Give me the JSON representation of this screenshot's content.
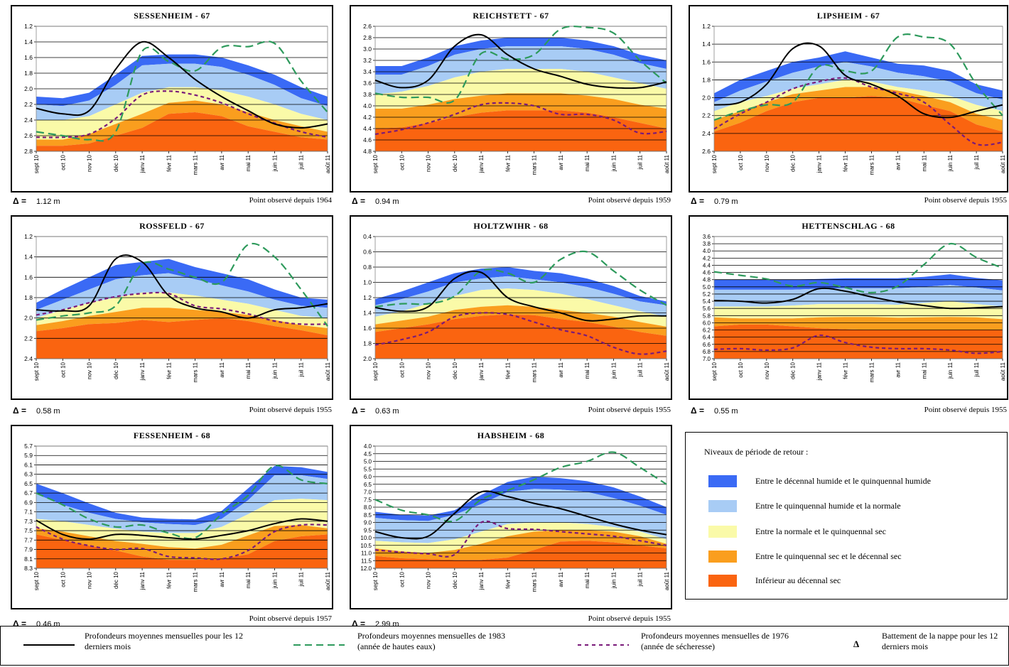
{
  "colors": {
    "band1": "#3a6af5",
    "band2": "#a8ccf5",
    "band3": "#fafaa8",
    "band4": "#fa9e1e",
    "band5": "#fa6410",
    "current": "#000000",
    "wet1983": "#2e9a5c",
    "dry1976": "#7a1a7a"
  },
  "months": [
    "sept 10",
    "oct 10",
    "nov 10",
    "déc 10",
    "janv 11",
    "févr 11",
    "mars 11",
    "avr 11",
    "mai 11",
    "juin 11",
    "juil 11",
    "août 11"
  ],
  "delta_symbol": "Δ =",
  "legend": {
    "title": "Niveaux de période de retour :",
    "items": [
      {
        "label": "Entre le décennal humide et le quinquennal humide",
        "color": "#3a6af5"
      },
      {
        "label": "Entre le quinquennal humide et la normale",
        "color": "#a8ccf5"
      },
      {
        "label": "Entre la normale et le quinquennal sec",
        "color": "#fafaa8"
      },
      {
        "label": "Entre le quinquennal sec et le décennal sec",
        "color": "#fa9e1e"
      },
      {
        "label": "Inférieur au décennal sec",
        "color": "#fa6410"
      }
    ]
  },
  "bottom_legend": {
    "current": "Profondeurs moyennes mensuelles pour les 12 derniers mois",
    "wet": "Profondeurs moyennes mensuelles de 1983 (année de hautes eaux)",
    "dry": "Profondeurs moyennes mensuelles de 1976 (année de sécheresse)",
    "delta_symbol": "Δ",
    "delta": "Battement de la nappe pour les 12 derniers mois"
  },
  "chart_data": [
    {
      "type": "area",
      "title": "SESSENHEIM - 67",
      "delta": "1.12 m",
      "observed": "Point observé depuis 1964",
      "y_inverted": true,
      "ylim": [
        1.2,
        2.8
      ],
      "yticks": [
        "1.2",
        "1.4",
        "1.6",
        "1.8",
        "2.0",
        "2.2",
        "2.4",
        "2.6",
        "2.8"
      ],
      "bands": [
        [
          2.1,
          2.12,
          2.05,
          1.82,
          1.58,
          1.56,
          1.56,
          1.6,
          1.7,
          1.82,
          1.98,
          2.1
        ],
        [
          2.2,
          2.22,
          2.15,
          1.95,
          1.7,
          1.68,
          1.68,
          1.72,
          1.82,
          1.95,
          2.12,
          2.22
        ],
        [
          2.4,
          2.4,
          2.35,
          2.2,
          2.05,
          1.98,
          1.98,
          2.02,
          2.1,
          2.2,
          2.32,
          2.4
        ],
        [
          2.65,
          2.65,
          2.58,
          2.45,
          2.32,
          2.18,
          2.15,
          2.2,
          2.3,
          2.4,
          2.48,
          2.55
        ],
        [
          2.73,
          2.73,
          2.7,
          2.6,
          2.5,
          2.32,
          2.3,
          2.35,
          2.48,
          2.55,
          2.62,
          2.65
        ]
      ],
      "current": [
        2.25,
        2.32,
        2.28,
        1.75,
        1.4,
        1.6,
        1.88,
        2.1,
        2.28,
        2.45,
        2.5,
        2.45
      ],
      "wet1983": [
        2.55,
        2.6,
        2.65,
        2.55,
        1.52,
        1.65,
        1.77,
        1.47,
        1.46,
        1.42,
        1.9,
        2.3
      ],
      "dry1976": [
        2.62,
        2.62,
        2.58,
        2.38,
        2.08,
        2.03,
        2.08,
        2.18,
        2.32,
        2.44,
        2.55,
        2.62
      ]
    },
    {
      "type": "area",
      "title": "REICHSTETT - 67",
      "delta": "0.94 m",
      "observed": "Point observé depuis 1959",
      "y_inverted": true,
      "ylim": [
        2.6,
        4.8
      ],
      "yticks": [
        "2.6",
        "2.8",
        "3.0",
        "3.2",
        "3.4",
        "3.6",
        "3.8",
        "4.0",
        "4.2",
        "4.4",
        "4.6",
        "4.8"
      ],
      "bands": [
        [
          3.3,
          3.3,
          3.15,
          2.95,
          2.85,
          2.8,
          2.8,
          2.8,
          2.85,
          2.95,
          3.1,
          3.2
        ],
        [
          3.45,
          3.45,
          3.3,
          3.1,
          3.0,
          2.95,
          2.95,
          2.95,
          3.0,
          3.1,
          3.25,
          3.35
        ],
        [
          3.8,
          3.75,
          3.65,
          3.5,
          3.4,
          3.35,
          3.35,
          3.35,
          3.4,
          3.5,
          3.6,
          3.7
        ],
        [
          4.05,
          4.05,
          3.98,
          3.88,
          3.82,
          3.78,
          3.78,
          3.78,
          3.82,
          3.88,
          3.98,
          4.05
        ],
        [
          4.4,
          4.38,
          4.3,
          4.2,
          4.12,
          4.08,
          4.08,
          4.08,
          4.12,
          4.2,
          4.3,
          4.4
        ]
      ],
      "current": [
        3.55,
        3.68,
        3.55,
        2.95,
        2.75,
        3.1,
        3.35,
        3.48,
        3.62,
        3.68,
        3.68,
        3.58
      ],
      "wet1983": [
        3.78,
        3.85,
        3.85,
        3.9,
        3.08,
        3.18,
        3.1,
        2.65,
        2.62,
        2.72,
        3.2,
        3.6
      ],
      "dry1976": [
        4.5,
        4.42,
        4.3,
        4.15,
        3.98,
        3.95,
        4.0,
        4.15,
        4.15,
        4.25,
        4.48,
        4.45
      ]
    },
    {
      "type": "area",
      "title": "LIPSHEIM - 67",
      "delta": "0.79 m",
      "observed": "Point observé depuis 1955",
      "y_inverted": true,
      "ylim": [
        1.2,
        2.6
      ],
      "yticks": [
        "1.2",
        "1.4",
        "1.6",
        "1.8",
        "2.0",
        "2.2",
        "2.4",
        "2.6"
      ],
      "bands": [
        [
          1.95,
          1.8,
          1.7,
          1.6,
          1.55,
          1.48,
          1.55,
          1.62,
          1.64,
          1.7,
          1.85,
          1.92
        ],
        [
          2.05,
          1.92,
          1.82,
          1.72,
          1.65,
          1.6,
          1.65,
          1.72,
          1.76,
          1.82,
          1.95,
          2.02
        ],
        [
          2.15,
          2.05,
          1.98,
          1.9,
          1.85,
          1.8,
          1.82,
          1.88,
          1.92,
          1.98,
          2.08,
          2.15
        ],
        [
          2.25,
          2.15,
          2.05,
          1.96,
          1.92,
          1.88,
          1.88,
          1.92,
          1.98,
          2.05,
          2.18,
          2.25
        ],
        [
          2.38,
          2.28,
          2.15,
          2.05,
          2.0,
          2.0,
          1.98,
          2.0,
          2.08,
          2.15,
          2.3,
          2.38
        ]
      ],
      "current": [
        2.08,
        2.05,
        1.85,
        1.45,
        1.42,
        1.75,
        1.85,
        1.98,
        2.18,
        2.22,
        2.15,
        2.08
      ],
      "wet1983": [
        2.25,
        2.15,
        2.08,
        2.05,
        1.65,
        1.7,
        1.7,
        1.32,
        1.32,
        1.4,
        1.85,
        2.2
      ],
      "dry1976": [
        2.35,
        2.18,
        2.05,
        1.9,
        1.82,
        1.78,
        1.88,
        1.95,
        2.05,
        2.3,
        2.52,
        2.5
      ]
    },
    {
      "type": "area",
      "title": "ROSSFELD - 67",
      "delta": "0.58 m",
      "observed": "Point observé depuis 1955",
      "y_inverted": true,
      "ylim": [
        1.2,
        2.4
      ],
      "yticks": [
        "1.2",
        "1.4",
        "1.6",
        "1.8",
        "2.0",
        "2.2",
        "2.4"
      ],
      "bands": [
        [
          1.85,
          1.72,
          1.6,
          1.48,
          1.45,
          1.42,
          1.5,
          1.56,
          1.62,
          1.72,
          1.8,
          1.82
        ],
        [
          1.92,
          1.82,
          1.72,
          1.62,
          1.58,
          1.56,
          1.62,
          1.68,
          1.74,
          1.82,
          1.88,
          1.9
        ],
        [
          2.0,
          1.92,
          1.85,
          1.8,
          1.75,
          1.75,
          1.78,
          1.82,
          1.86,
          1.92,
          1.98,
          2.0
        ],
        [
          2.07,
          2.03,
          1.98,
          1.94,
          1.9,
          1.9,
          1.92,
          1.94,
          1.97,
          2.02,
          2.07,
          2.1
        ],
        [
          2.13,
          2.1,
          2.06,
          2.05,
          2.02,
          2.04,
          2.02,
          2.0,
          2.03,
          2.08,
          2.12,
          2.17
        ]
      ],
      "current": [
        1.92,
        1.93,
        1.88,
        1.42,
        1.45,
        1.78,
        1.9,
        1.94,
        2.0,
        1.92,
        1.9,
        1.86
      ],
      "wet1983": [
        2.02,
        1.98,
        1.95,
        1.88,
        1.47,
        1.52,
        1.6,
        1.65,
        1.28,
        1.4,
        1.72,
        2.08
      ],
      "dry1976": [
        1.97,
        1.92,
        1.85,
        1.79,
        1.76,
        1.76,
        1.88,
        1.91,
        1.96,
        2.03,
        2.06,
        2.06
      ]
    },
    {
      "type": "area",
      "title": "HOLTZWIHR - 68",
      "delta": "0.63 m",
      "observed": "Point observé depuis 1955",
      "y_inverted": true,
      "ylim": [
        0.4,
        2.0
      ],
      "yticks": [
        "0.4",
        "0.6",
        "0.8",
        "1.0",
        "1.2",
        "1.4",
        "1.6",
        "1.8",
        "2.0"
      ],
      "bands": [
        [
          1.22,
          1.12,
          1.0,
          0.88,
          0.82,
          0.8,
          0.85,
          0.88,
          0.95,
          1.05,
          1.18,
          1.25
        ],
        [
          1.3,
          1.22,
          1.12,
          1.0,
          0.95,
          0.92,
          0.96,
          1.0,
          1.06,
          1.15,
          1.25,
          1.3
        ],
        [
          1.45,
          1.38,
          1.28,
          1.18,
          1.1,
          1.08,
          1.1,
          1.15,
          1.22,
          1.3,
          1.38,
          1.45
        ],
        [
          1.55,
          1.5,
          1.45,
          1.36,
          1.32,
          1.3,
          1.32,
          1.36,
          1.4,
          1.45,
          1.52,
          1.58
        ],
        [
          1.65,
          1.6,
          1.55,
          1.48,
          1.44,
          1.42,
          1.43,
          1.48,
          1.52,
          1.58,
          1.65,
          1.7
        ]
      ],
      "current": [
        1.33,
        1.38,
        1.32,
        0.95,
        0.87,
        1.2,
        1.32,
        1.4,
        1.5,
        1.48,
        1.44,
        1.44
      ],
      "wet1983": [
        1.32,
        1.28,
        1.28,
        1.18,
        0.85,
        0.88,
        1.0,
        0.7,
        0.6,
        0.85,
        1.1,
        1.3
      ],
      "dry1976": [
        1.82,
        1.75,
        1.65,
        1.45,
        1.4,
        1.42,
        1.52,
        1.62,
        1.7,
        1.85,
        1.94,
        1.9
      ]
    },
    {
      "type": "area",
      "title": "HETTENSCHLAG - 68",
      "delta": "0.55 m",
      "observed": "Point observé depuis 1955",
      "y_inverted": true,
      "ylim": [
        3.6,
        7.0
      ],
      "yticks": [
        "3.6",
        "3.8",
        "4.0",
        "4.2",
        "4.4",
        "4.6",
        "4.8",
        "5.0",
        "5.2",
        "5.4",
        "5.6",
        "5.8",
        "6.0",
        "6.2",
        "6.4",
        "6.6",
        "6.8",
        "7.0"
      ],
      "bands": [
        [
          4.8,
          4.8,
          4.8,
          4.8,
          4.78,
          4.76,
          4.76,
          4.76,
          4.72,
          4.65,
          4.75,
          4.82
        ],
        [
          5.08,
          5.08,
          5.08,
          5.08,
          5.05,
          5.04,
          5.04,
          5.04,
          5.0,
          4.95,
          5.02,
          5.1
        ],
        [
          5.55,
          5.55,
          5.55,
          5.52,
          5.48,
          5.48,
          5.48,
          5.5,
          5.45,
          5.4,
          5.48,
          5.55
        ],
        [
          5.85,
          5.88,
          5.88,
          5.88,
          5.85,
          5.84,
          5.84,
          5.86,
          5.85,
          5.84,
          5.85,
          5.9
        ],
        [
          6.1,
          6.05,
          6.05,
          6.1,
          6.15,
          6.18,
          6.2,
          6.2,
          6.2,
          6.2,
          6.2,
          6.2
        ]
      ],
      "current": [
        5.38,
        5.4,
        5.45,
        5.35,
        5.05,
        5.12,
        5.28,
        5.42,
        5.52,
        5.6,
        5.58,
        5.55
      ],
      "wet1983": [
        4.58,
        4.68,
        4.78,
        4.98,
        4.88,
        5.02,
        5.16,
        4.98,
        4.38,
        3.8,
        4.18,
        4.48
      ],
      "dry1976": [
        6.74,
        6.72,
        6.76,
        6.7,
        6.35,
        6.55,
        6.68,
        6.72,
        6.72,
        6.76,
        6.85,
        6.8
      ]
    },
    {
      "type": "area",
      "title": "FESSENHEIM - 68",
      "delta": "0.46 m",
      "observed": "Point observé depuis 1957",
      "y_inverted": true,
      "ylim": [
        5.7,
        8.3
      ],
      "yticks": [
        "5.7",
        "5.9",
        "6.1",
        "6.3",
        "6.5",
        "6.7",
        "6.9",
        "7.1",
        "7.3",
        "7.5",
        "7.7",
        "7.9",
        "8.1",
        "8.3"
      ],
      "bands": [
        [
          6.5,
          6.7,
          6.92,
          7.12,
          7.22,
          7.25,
          7.26,
          7.08,
          6.6,
          6.12,
          6.15,
          6.25
        ],
        [
          6.72,
          6.95,
          7.12,
          7.25,
          7.32,
          7.36,
          7.38,
          7.25,
          6.85,
          6.32,
          6.32,
          6.4
        ],
        [
          7.25,
          7.3,
          7.38,
          7.46,
          7.52,
          7.55,
          7.55,
          7.42,
          7.15,
          6.85,
          6.82,
          6.85
        ],
        [
          7.45,
          7.52,
          7.62,
          7.72,
          7.78,
          7.85,
          7.88,
          7.8,
          7.6,
          7.4,
          7.38,
          7.45
        ],
        [
          7.58,
          7.7,
          7.82,
          7.92,
          8.05,
          8.12,
          8.12,
          8.1,
          8.0,
          7.72,
          7.62,
          7.58
        ]
      ],
      "current": [
        7.28,
        7.58,
        7.68,
        7.58,
        7.6,
        7.65,
        7.68,
        7.6,
        7.5,
        7.35,
        7.25,
        7.3
      ],
      "wet1983": [
        6.7,
        6.95,
        7.25,
        7.42,
        7.38,
        7.55,
        7.65,
        7.15,
        6.75,
        6.12,
        6.42,
        6.5
      ],
      "dry1976": [
        7.42,
        7.68,
        7.82,
        7.9,
        7.88,
        8.05,
        8.08,
        8.1,
        7.92,
        7.52,
        7.38,
        7.38
      ]
    },
    {
      "type": "area",
      "title": "HABSHEIM - 68",
      "delta": "2.99 m",
      "observed": "Point observé depuis 1955",
      "y_inverted": true,
      "ylim": [
        4.0,
        12.0
      ],
      "yticks": [
        "4.0",
        "4.5",
        "5.0",
        "5.5",
        "6.0",
        "6.5",
        "7.0",
        "7.5",
        "8.0",
        "8.5",
        "9.0",
        "9.5",
        "10.0",
        "10.5",
        "11.0",
        "11.5",
        "12.0"
      ],
      "bands": [
        [
          8.3,
          8.5,
          8.55,
          8.2,
          7.2,
          6.35,
          6.0,
          6.1,
          6.3,
          6.7,
          7.3,
          8.0
        ],
        [
          8.7,
          8.85,
          8.9,
          8.5,
          7.8,
          7.0,
          6.8,
          6.85,
          7.0,
          7.4,
          7.9,
          8.5
        ],
        [
          10.2,
          10.3,
          10.35,
          10.1,
          9.6,
          9.1,
          9.0,
          9.0,
          9.1,
          9.3,
          9.6,
          10.1
        ],
        [
          10.7,
          10.9,
          11.0,
          10.8,
          10.4,
          9.9,
          9.6,
          9.5,
          9.5,
          9.6,
          9.9,
          10.4
        ],
        [
          11.2,
          11.35,
          11.4,
          11.45,
          11.45,
          11.3,
          10.8,
          10.25,
          10.2,
          10.3,
          10.5,
          10.7
        ]
      ],
      "current": [
        9.6,
        10.0,
        9.9,
        8.4,
        7.0,
        7.3,
        7.75,
        8.1,
        8.6,
        9.1,
        9.5,
        9.8
      ],
      "wet1983": [
        7.5,
        8.2,
        8.5,
        8.9,
        7.5,
        6.9,
        6.2,
        5.4,
        5.0,
        4.4,
        5.4,
        6.5
      ],
      "dry1976": [
        10.8,
        10.95,
        11.05,
        11.1,
        9.0,
        9.4,
        9.45,
        9.6,
        9.75,
        9.9,
        10.2,
        10.5
      ]
    }
  ]
}
